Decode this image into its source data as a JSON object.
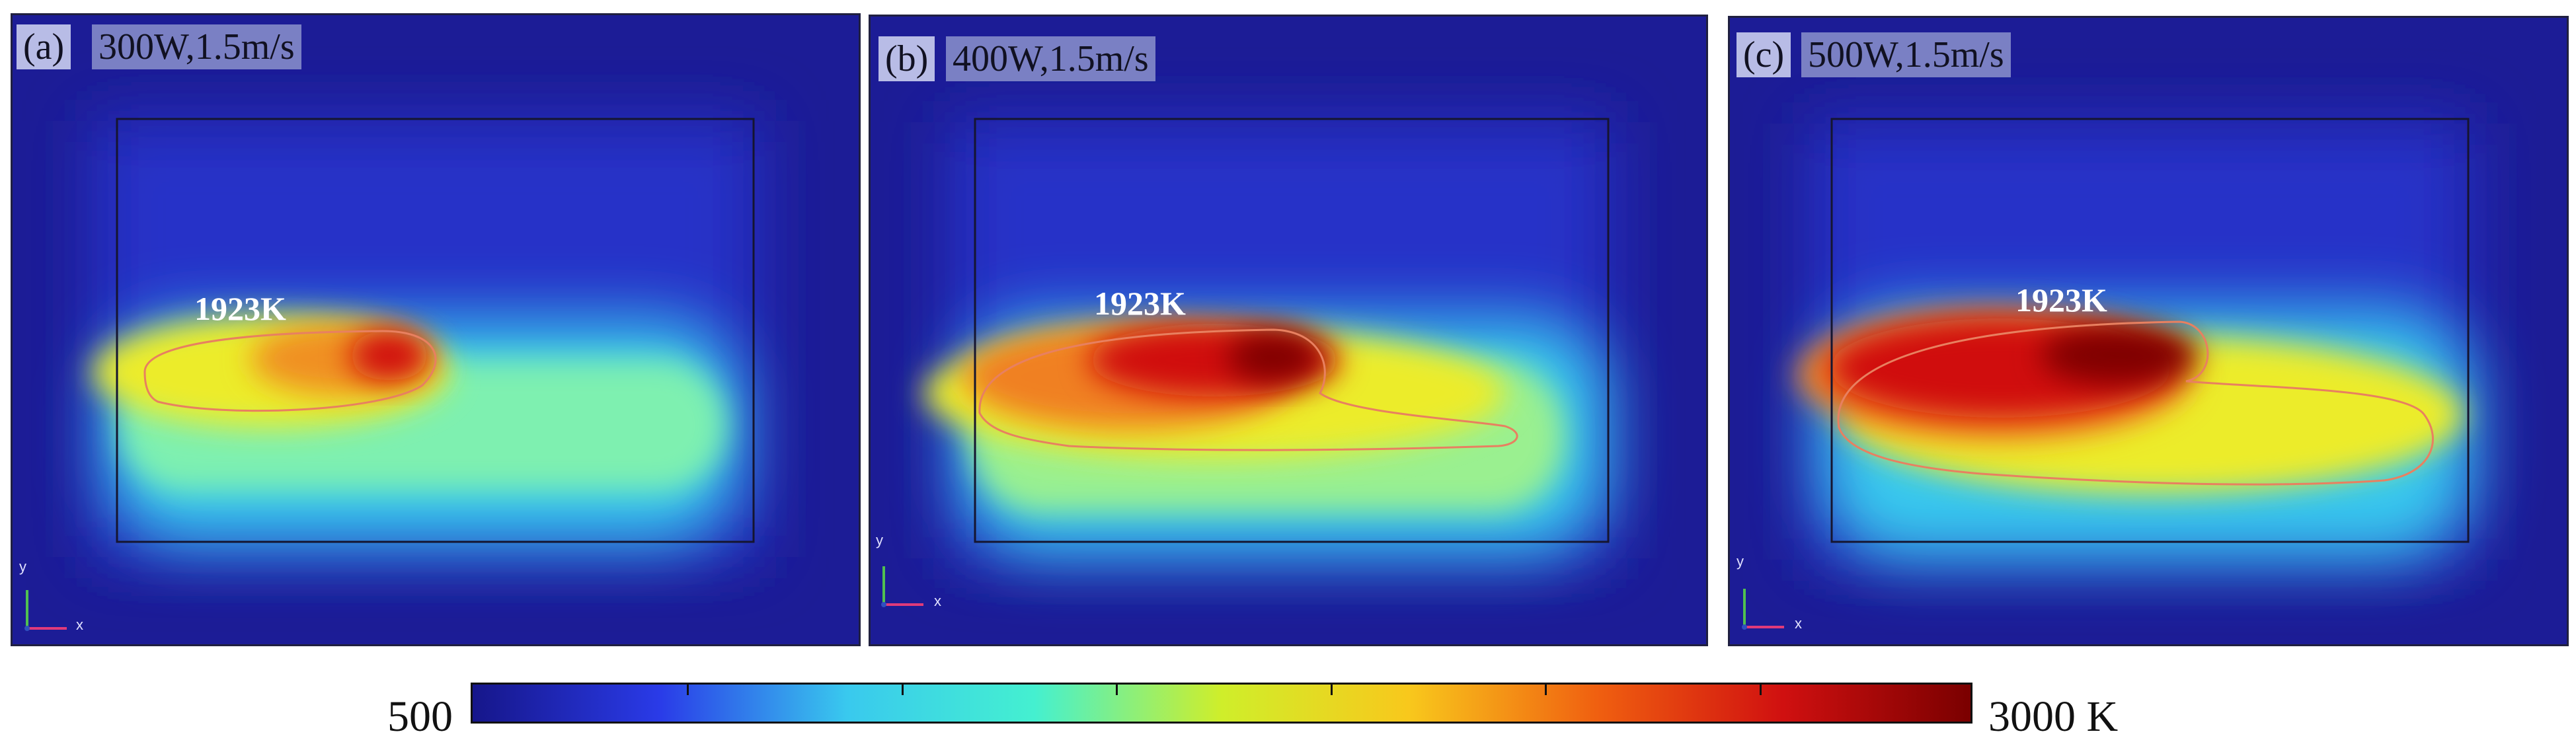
{
  "panels": [
    {
      "id": "a",
      "letter": "(a)",
      "condition": "300W,1.5m/s",
      "contour_label": "1923K",
      "x_axis": "x",
      "y_axis": "y"
    },
    {
      "id": "b",
      "letter": "(b)",
      "condition": "400W,1.5m/s",
      "contour_label": "1923K",
      "x_axis": "x",
      "y_axis": "y"
    },
    {
      "id": "c",
      "letter": "(c)",
      "condition": "500W,1.5m/s",
      "contour_label": "1923K",
      "x_axis": "x",
      "y_axis": "y"
    }
  ],
  "colorbar": {
    "min_label": "500",
    "max_label": "3000 K",
    "min_value": 500,
    "max_value": 3000,
    "colormap": "jet",
    "colors": [
      "#16168a",
      "#2a3be8",
      "#39c9ee",
      "#44f0d0",
      "#cfee2a",
      "#f8c81c",
      "#f06010",
      "#d01010",
      "#7a0000"
    ]
  }
}
